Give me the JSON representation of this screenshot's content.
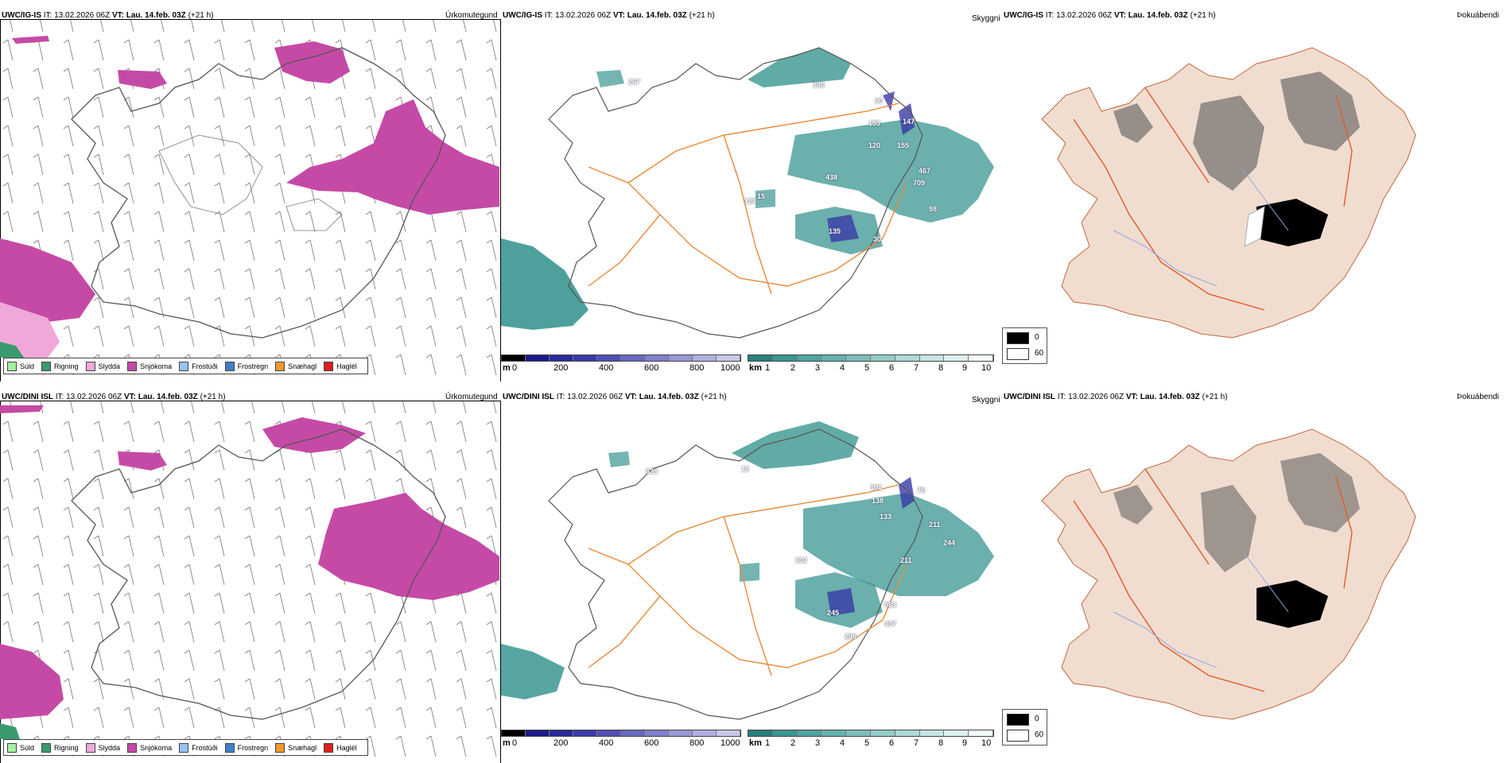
{
  "legend_items": [
    {
      "label": "Súld",
      "color": "#a3f0a3"
    },
    {
      "label": "Rigning",
      "color": "#3a9a6e"
    },
    {
      "label": "Slydda",
      "color": "#f0a8d8"
    },
    {
      "label": "Snjókoma",
      "color": "#c54aa6"
    },
    {
      "label": "Frostúði",
      "color": "#96c3f2"
    },
    {
      "label": "Frostregn",
      "color": "#3e7fc8"
    },
    {
      "label": "Snæhagl",
      "color": "#ef9a2a"
    },
    {
      "label": "Haglél",
      "color": "#e01f1f"
    }
  ],
  "colors": {
    "snow": "#c54aa6",
    "sleet": "#f0a8d8",
    "rain": "#3a9a6e",
    "cloud_teal": "#3a9690",
    "ceiling_blue": "#3a3aa8",
    "roads": "#e98a3a",
    "land_tan": "#f1ddd0",
    "coast": "#555555"
  },
  "rows": [
    {
      "model": "UWC/IG-IS",
      "it_label": "IT:",
      "it_value": "13.02.2026 06Z",
      "vt_label": "VT:",
      "vt_value": "Lau. 14.feb. 03Z",
      "lead": "(+21 h)",
      "vis_labels": [
        "267",
        "380",
        "30",
        "153",
        "147",
        "155",
        "120",
        "438",
        "467",
        "709",
        "128",
        "15",
        "98",
        "135",
        "30"
      ]
    },
    {
      "model": "UWC/DINI ISL",
      "it_label": "IT:",
      "it_value": "13.02.2026 06Z",
      "vt_label": "VT:",
      "vt_value": "Lau. 14.feb. 03Z",
      "lead": "(+21 h)",
      "vis_labels": [
        "628",
        "12",
        "191",
        "138",
        "133",
        "75",
        "211",
        "244",
        "302",
        "211",
        "245",
        "583",
        "407",
        "299"
      ]
    }
  ],
  "panel_titles": {
    "precip": "Úrkomutegund",
    "vis": "Skyggni",
    "cloud": "Þokuábendi"
  },
  "ceiling_bar": {
    "unit": "m",
    "ticks": [
      "0",
      "200",
      "400",
      "600",
      "800",
      "1000"
    ]
  },
  "vis_bar": {
    "unit": "km",
    "ticks": [
      "1",
      "2",
      "3",
      "4",
      "5",
      "6",
      "7",
      "8",
      "9",
      "10"
    ]
  },
  "cloud_legend": {
    "black_label": "0",
    "white_label": "60"
  }
}
